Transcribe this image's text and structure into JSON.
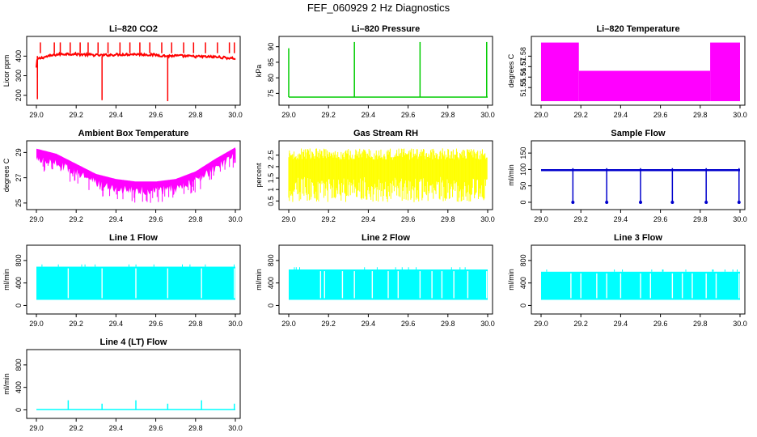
{
  "page": {
    "title": "FEF_060929  2 Hz Diagnostics"
  },
  "chart_data": [
    {
      "type": "line",
      "title": "Li–820 CO2",
      "ylabel": "Licor ppm",
      "color": "#ff0000",
      "xlim": [
        29.0,
        30.0
      ],
      "ylim": [
        170,
        480
      ],
      "xticks": [
        "29.0",
        "29.2",
        "29.4",
        "29.6",
        "29.8",
        "30.0"
      ],
      "yticks": [
        200,
        300,
        400
      ],
      "band": {
        "low": 395,
        "high": 420,
        "start": 390,
        "end": 385
      },
      "series": [
        {
          "x": [
            29.0,
            29.005,
            29.04,
            29.1,
            29.16,
            29.2,
            29.33,
            29.4,
            29.5,
            29.6,
            29.66,
            29.7,
            29.8,
            29.9,
            30.0
          ],
          "values": [
            340,
            385,
            395,
            408,
            412,
            410,
            404,
            408,
            410,
            406,
            400,
            402,
            398,
            396,
            388
          ]
        }
      ],
      "spikes": [
        {
          "x": 29.005,
          "values": [
            290,
            180
          ]
        },
        {
          "x": 29.33,
          "values": [
            175
          ]
        },
        {
          "x": 29.66,
          "values": [
            170
          ]
        }
      ],
      "up_spikes": [
        29.02,
        29.09,
        29.12,
        29.17,
        29.22,
        29.26,
        29.31,
        29.36,
        29.42,
        29.47,
        29.52,
        29.57,
        29.63,
        29.68,
        29.74,
        29.79,
        29.85,
        29.91,
        29.97,
        29.995
      ]
    },
    {
      "type": "line",
      "title": "Li–820 Pressure",
      "ylabel": "kPa",
      "color": "#00cc00",
      "xlim": [
        29.0,
        30.0
      ],
      "ylim": [
        72.5,
        92
      ],
      "xticks": [
        "29.0",
        "29.2",
        "29.4",
        "29.6",
        "29.8",
        "30.0"
      ],
      "yticks": [
        75,
        80,
        85,
        90
      ],
      "baseline": 73.8,
      "spikes": [
        {
          "x": 29.0,
          "value": 89.5
        },
        {
          "x": 29.33,
          "value": 91.5
        },
        {
          "x": 29.66,
          "value": 91.5
        },
        {
          "x": 29.995,
          "value": 91.5
        }
      ]
    },
    {
      "type": "area",
      "title": "Li–820 Temperature",
      "ylabel": "degrees C",
      "color": "#ff00ff",
      "xlim": [
        29.0,
        30.0
      ],
      "ylim": [
        51.537,
        51.595
      ],
      "xticks": [
        "29.0",
        "29.2",
        "29.4",
        "29.6",
        "29.8",
        "30.0"
      ],
      "yticks": [
        "51.55",
        "51.56",
        "51.57",
        "51.58"
      ],
      "fill_low": 51.537,
      "segments": [
        {
          "x0": 29.0,
          "x1": 29.19,
          "high": 51.593
        },
        {
          "x0": 29.19,
          "x1": 29.85,
          "high": 51.566
        },
        {
          "x0": 29.85,
          "x1": 30.0,
          "high": 51.593
        }
      ]
    },
    {
      "type": "line",
      "title": "Ambient Box Temperature",
      "ylabel": "degrees C",
      "color": "#ff00ff",
      "xlim": [
        29.0,
        30.0
      ],
      "ylim": [
        24.8,
        29.6
      ],
      "xticks": [
        "29.0",
        "29.2",
        "29.4",
        "29.6",
        "29.8",
        "30.0"
      ],
      "yticks": [
        25,
        27,
        29
      ],
      "series": [
        {
          "x": [
            29.0,
            29.1,
            29.2,
            29.3,
            29.4,
            29.5,
            29.6,
            29.7,
            29.8,
            29.9,
            30.0
          ],
          "values": [
            29.2,
            28.8,
            28.0,
            27.2,
            26.8,
            26.6,
            26.6,
            26.8,
            27.4,
            28.4,
            29.3
          ]
        }
      ],
      "band_depth": 1.0
    },
    {
      "type": "area",
      "title": "Gas Stream RH",
      "ylabel": "percent",
      "color": "#ffff00",
      "xlim": [
        29.0,
        30.0
      ],
      "ylim": [
        0.3,
        2.95
      ],
      "xticks": [
        "29.0",
        "29.2",
        "29.4",
        "29.6",
        "29.8",
        "30.0"
      ],
      "yticks": [
        0.5,
        1.0,
        1.5,
        2.0,
        2.5
      ],
      "range": [
        0.45,
        2.8
      ]
    },
    {
      "type": "line",
      "title": "Sample Flow",
      "ylabel": "ml/min",
      "color": "#0000cc",
      "xlim": [
        29.0,
        30.0
      ],
      "ylim": [
        -10,
        175
      ],
      "xticks": [
        "29.0",
        "29.2",
        "29.4",
        "29.6",
        "29.8",
        "30.0"
      ],
      "yticks": [
        0,
        50,
        100,
        150
      ],
      "baseline": 98,
      "dips": [
        {
          "x": 29.16,
          "value": 0
        },
        {
          "x": 29.33,
          "value": 0
        },
        {
          "x": 29.5,
          "value": 0
        },
        {
          "x": 29.66,
          "value": 0
        },
        {
          "x": 29.83,
          "value": 0
        },
        {
          "x": 29.995,
          "value": 0
        }
      ]
    },
    {
      "type": "area",
      "title": "Line 1 Flow",
      "ylabel": "ml/min",
      "color": "#00ffff",
      "xlim": [
        29.0,
        30.0
      ],
      "ylim": [
        -80,
        1000
      ],
      "xticks": [
        "29.0",
        "29.2",
        "29.4",
        "29.6",
        "29.8",
        "30.0"
      ],
      "yticks": [
        0,
        400,
        800
      ],
      "range": [
        100,
        690
      ],
      "gaps": [
        29.16,
        29.33,
        29.5,
        29.66,
        29.83,
        29.995
      ]
    },
    {
      "type": "area",
      "title": "Line 2 Flow",
      "ylabel": "ml/min",
      "color": "#00ffff",
      "xlim": [
        29.0,
        30.0
      ],
      "ylim": [
        -80,
        1000
      ],
      "xticks": [
        "29.0",
        "29.2",
        "29.4",
        "29.6",
        "29.8",
        "30.0"
      ],
      "yticks": [
        0,
        400,
        800
      ],
      "range": [
        100,
        640
      ],
      "gaps": [
        29.16,
        29.18,
        29.27,
        29.33,
        29.42,
        29.5,
        29.55,
        29.66,
        29.72,
        29.77,
        29.83,
        29.9,
        29.995
      ]
    },
    {
      "type": "area",
      "title": "Line 3 Flow",
      "ylabel": "ml/min",
      "color": "#00ffff",
      "xlim": [
        29.0,
        30.0
      ],
      "ylim": [
        -80,
        1000
      ],
      "xticks": [
        "29.0",
        "29.2",
        "29.4",
        "29.6",
        "29.8",
        "30.0"
      ],
      "yticks": [
        0,
        400,
        800
      ],
      "range": [
        100,
        600
      ],
      "gaps": [
        29.15,
        29.2,
        29.28,
        29.33,
        29.4,
        29.5,
        29.55,
        29.66,
        29.71,
        29.76,
        29.83,
        29.88,
        29.995
      ]
    },
    {
      "type": "line",
      "title": "Line 4 (LT) Flow",
      "ylabel": "ml/min",
      "color": "#00ffff",
      "xlim": [
        29.0,
        30.0
      ],
      "ylim": [
        -80,
        1000
      ],
      "xticks": [
        "29.0",
        "29.2",
        "29.4",
        "29.6",
        "29.8",
        "30.0"
      ],
      "yticks": [
        0,
        400,
        800
      ],
      "baseline": 5,
      "spikes": [
        {
          "x": 29.16,
          "value": 170
        },
        {
          "x": 29.33,
          "value": 110
        },
        {
          "x": 29.5,
          "value": 170
        },
        {
          "x": 29.66,
          "value": 110
        },
        {
          "x": 29.83,
          "value": 170
        },
        {
          "x": 29.995,
          "value": 110
        }
      ]
    }
  ]
}
